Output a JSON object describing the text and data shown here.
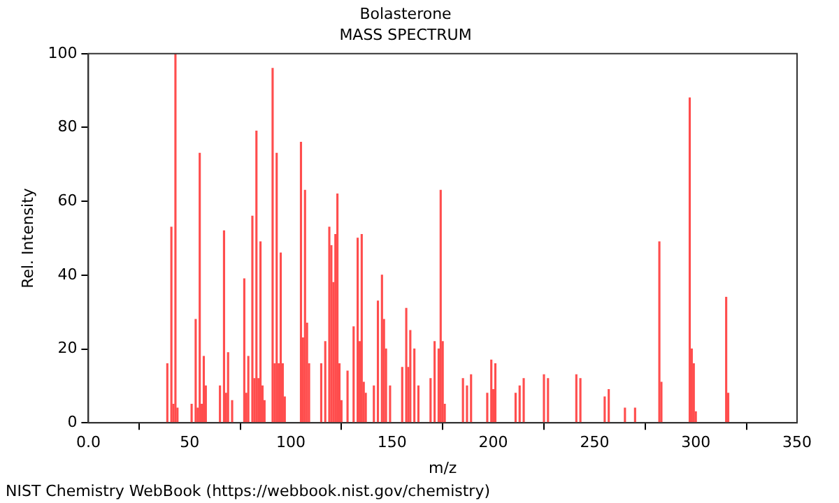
{
  "chart_data": {
    "type": "bar",
    "title": "Bolasterone",
    "subtitle": "MASS SPECTRUM",
    "xlabel": "m/z",
    "ylabel": "Rel. Intensity",
    "annotations": [
      "NIST Chemistry WebBook (https://webbook.nist.gov/chemistry)"
    ],
    "x": [
      39,
      41,
      42,
      43,
      44,
      51,
      53,
      54,
      55,
      56,
      57,
      58,
      65,
      67,
      68,
      69,
      71,
      77,
      78,
      79,
      81,
      82,
      83,
      84,
      85,
      86,
      87,
      91,
      92,
      93,
      94,
      95,
      96,
      97,
      105,
      106,
      107,
      108,
      109,
      115,
      117,
      119,
      120,
      121,
      122,
      123,
      124,
      125,
      128,
      131,
      133,
      134,
      135,
      136,
      137,
      141,
      143,
      145,
      146,
      147,
      149,
      155,
      157,
      158,
      159,
      161,
      163,
      169,
      171,
      173,
      174,
      175,
      176,
      185,
      187,
      189,
      197,
      199,
      200,
      201,
      211,
      213,
      215,
      225,
      227,
      241,
      243,
      255,
      257,
      265,
      270,
      282,
      283,
      297,
      298,
      299,
      300,
      315,
      316
    ],
    "values": [
      16,
      53,
      5,
      100,
      4,
      5,
      28,
      4,
      73,
      5,
      18,
      10,
      10,
      52,
      8,
      19,
      6,
      39,
      8,
      18,
      56,
      12,
      79,
      12,
      49,
      10,
      6,
      96,
      16,
      73,
      16,
      46,
      16,
      7,
      76,
      23,
      63,
      27,
      16,
      16,
      22,
      53,
      48,
      38,
      51,
      62,
      16,
      6,
      14,
      26,
      50,
      22,
      51,
      11,
      8,
      10,
      33,
      40,
      28,
      20,
      10,
      15,
      31,
      15,
      25,
      20,
      10,
      12,
      22,
      20,
      63,
      22,
      5,
      12,
      10,
      13,
      8,
      17,
      9,
      16,
      8,
      10,
      12,
      13,
      12,
      13,
      12,
      7,
      9,
      4,
      4,
      49,
      11,
      88,
      20,
      16,
      3,
      34,
      8
    ],
    "color": "#ff4d4d",
    "xlim": [
      0,
      350
    ],
    "xticks": [
      {
        "value": 0,
        "label": "0.0"
      },
      50,
      100,
      150,
      200,
      250,
      300,
      350
    ],
    "ylim": [
      0,
      100
    ],
    "yticks": [
      0,
      20,
      40,
      60,
      80,
      100
    ],
    "grid": false,
    "legend": false
  }
}
